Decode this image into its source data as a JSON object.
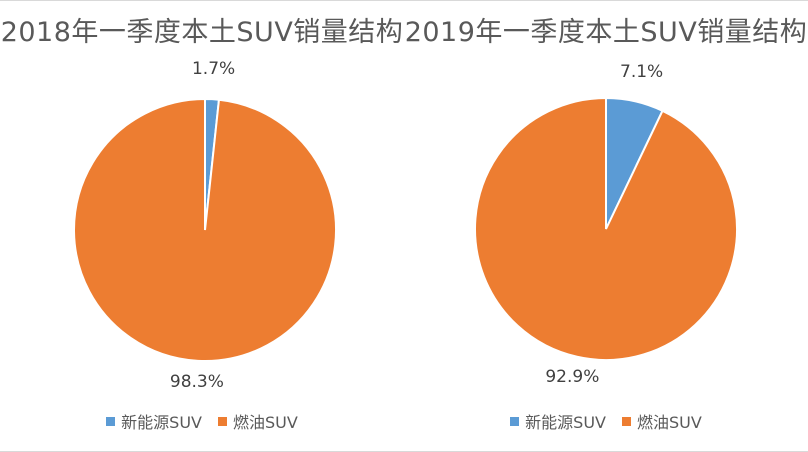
{
  "chart_data": [
    {
      "type": "pie",
      "title": "2018年一季度本土SUV销量结构",
      "categories": [
        "新能源SUV",
        "燃油SUV"
      ],
      "values": [
        1.7,
        98.3
      ],
      "data_labels": [
        "1.7%",
        "98.3%"
      ],
      "colors": [
        "#5B9BD5",
        "#ED7D31"
      ],
      "legend_position": "bottom"
    },
    {
      "type": "pie",
      "title": "2019年一季度本土SUV销量结构",
      "categories": [
        "新能源SUV",
        "燃油SUV"
      ],
      "values": [
        7.1,
        92.9
      ],
      "data_labels": [
        "7.1%",
        "92.9%"
      ],
      "colors": [
        "#5B9BD5",
        "#ED7D31"
      ],
      "legend_position": "bottom"
    }
  ]
}
